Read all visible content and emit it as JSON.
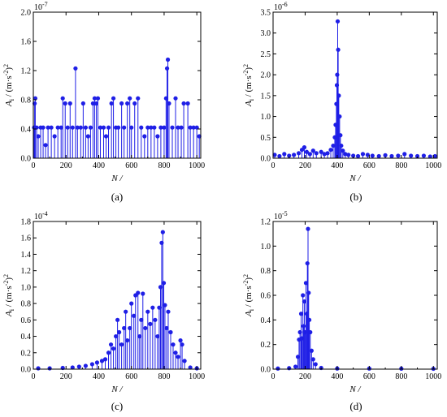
{
  "figure": {
    "panel_labels": [
      "(a)",
      "(b)",
      "(c)",
      "(d)"
    ]
  },
  "chart_data": [
    {
      "type": "scatter",
      "style": "stem",
      "color": "#1f1fe6",
      "panel": "(a)",
      "xlabel": "N /",
      "ylabel": "A_i / (m·s^-2)^2",
      "scale_label": "10^-7",
      "xlim": [
        0,
        1024
      ],
      "ylim": [
        0,
        2.0
      ],
      "x_ticks": [
        0,
        200,
        400,
        600,
        800,
        1000
      ],
      "x_tick_labels": [
        "0",
        "200",
        "400",
        "600",
        "800",
        "1000"
      ],
      "y_ticks": [
        0,
        0.4,
        0.8,
        1.2,
        1.6,
        2.0
      ],
      "y_tick_labels": [
        "0.0",
        "0.4",
        "0.8",
        "1.2",
        "1.6",
        "2.0"
      ],
      "points": [
        [
          5,
          0.42
        ],
        [
          8,
          0.75
        ],
        [
          12,
          0.82
        ],
        [
          20,
          0.42
        ],
        [
          30,
          0.3
        ],
        [
          45,
          0.42
        ],
        [
          60,
          0.42
        ],
        [
          75,
          0.18
        ],
        [
          90,
          0.42
        ],
        [
          110,
          0.42
        ],
        [
          130,
          0.3
        ],
        [
          150,
          0.42
        ],
        [
          170,
          0.42
        ],
        [
          180,
          0.82
        ],
        [
          195,
          0.75
        ],
        [
          210,
          0.42
        ],
        [
          225,
          0.75
        ],
        [
          240,
          0.42
        ],
        [
          258,
          1.23
        ],
        [
          270,
          0.42
        ],
        [
          290,
          0.42
        ],
        [
          305,
          0.75
        ],
        [
          320,
          0.42
        ],
        [
          335,
          0.3
        ],
        [
          350,
          0.42
        ],
        [
          365,
          0.75
        ],
        [
          375,
          0.82
        ],
        [
          385,
          0.75
        ],
        [
          395,
          0.82
        ],
        [
          410,
          0.42
        ],
        [
          430,
          0.42
        ],
        [
          445,
          0.3
        ],
        [
          460,
          0.42
        ],
        [
          478,
          0.75
        ],
        [
          490,
          0.82
        ],
        [
          505,
          0.42
        ],
        [
          520,
          0.42
        ],
        [
          540,
          0.75
        ],
        [
          555,
          0.42
        ],
        [
          575,
          0.75
        ],
        [
          590,
          0.82
        ],
        [
          600,
          0.42
        ],
        [
          620,
          0.75
        ],
        [
          640,
          0.82
        ],
        [
          660,
          0.42
        ],
        [
          680,
          0.3
        ],
        [
          700,
          0.42
        ],
        [
          720,
          0.42
        ],
        [
          740,
          0.42
        ],
        [
          760,
          0.3
        ],
        [
          780,
          0.42
        ],
        [
          800,
          0.42
        ],
        [
          812,
          0.82
        ],
        [
          818,
          1.23
        ],
        [
          823,
          1.35
        ],
        [
          830,
          0.75
        ],
        [
          850,
          0.42
        ],
        [
          870,
          0.82
        ],
        [
          885,
          0.42
        ],
        [
          905,
          0.42
        ],
        [
          920,
          0.75
        ],
        [
          945,
          0.75
        ],
        [
          960,
          0.42
        ],
        [
          980,
          0.42
        ],
        [
          1000,
          0.42
        ],
        [
          1015,
          0.3
        ]
      ]
    },
    {
      "type": "scatter",
      "style": "stem",
      "color": "#1f1fe6",
      "panel": "(b)",
      "xlabel": "N /",
      "ylabel": "A_i / (m·s^-2)^2",
      "scale_label": "10^-6",
      "xlim": [
        0,
        1024
      ],
      "ylim": [
        0,
        3.5
      ],
      "x_ticks": [
        0,
        200,
        400,
        600,
        800,
        1000
      ],
      "x_tick_labels": [
        "0",
        "200",
        "400",
        "600",
        "800",
        "1000"
      ],
      "y_ticks": [
        0,
        0.5,
        1.0,
        1.5,
        2.0,
        2.5,
        3.0,
        3.5
      ],
      "y_tick_labels": [
        "0.0",
        "0.5",
        "1.0",
        "1.5",
        "2.0",
        "2.5",
        "3.0",
        "3.5"
      ],
      "points": [
        [
          10,
          0.08
        ],
        [
          40,
          0.05
        ],
        [
          70,
          0.1
        ],
        [
          100,
          0.06
        ],
        [
          130,
          0.08
        ],
        [
          160,
          0.12
        ],
        [
          180,
          0.2
        ],
        [
          195,
          0.26
        ],
        [
          210,
          0.15
        ],
        [
          230,
          0.1
        ],
        [
          250,
          0.18
        ],
        [
          270,
          0.12
        ],
        [
          300,
          0.15
        ],
        [
          320,
          0.1
        ],
        [
          340,
          0.12
        ],
        [
          360,
          0.2
        ],
        [
          375,
          0.3
        ],
        [
          385,
          0.5
        ],
        [
          390,
          0.8
        ],
        [
          395,
          1.3
        ],
        [
          398,
          1.75
        ],
        [
          400,
          2.0
        ],
        [
          403,
          3.28
        ],
        [
          406,
          2.6
        ],
        [
          410,
          1.5
        ],
        [
          415,
          1.0
        ],
        [
          420,
          0.55
        ],
        [
          425,
          0.3
        ],
        [
          435,
          0.18
        ],
        [
          450,
          0.1
        ],
        [
          470,
          0.08
        ],
        [
          500,
          0.06
        ],
        [
          530,
          0.05
        ],
        [
          560,
          0.1
        ],
        [
          590,
          0.08
        ],
        [
          620,
          0.06
        ],
        [
          660,
          0.05
        ],
        [
          700,
          0.07
        ],
        [
          740,
          0.05
        ],
        [
          780,
          0.06
        ],
        [
          820,
          0.1
        ],
        [
          860,
          0.06
        ],
        [
          900,
          0.05
        ],
        [
          940,
          0.06
        ],
        [
          980,
          0.04
        ],
        [
          1010,
          0.05
        ]
      ]
    },
    {
      "type": "scatter",
      "style": "stem",
      "color": "#1f1fe6",
      "panel": "(c)",
      "xlabel": "N /",
      "ylabel": "A_i / (m·s^-2)^2",
      "scale_label": "10^-4",
      "xlim": [
        0,
        1024
      ],
      "ylim": [
        0,
        1.8
      ],
      "x_ticks": [
        0,
        200,
        400,
        600,
        800,
        1000
      ],
      "x_tick_labels": [
        "0",
        "200",
        "400",
        "600",
        "800",
        "1000"
      ],
      "y_ticks": [
        0,
        0.2,
        0.4,
        0.6,
        0.8,
        1.0,
        1.2,
        1.4,
        1.6,
        1.8
      ],
      "y_tick_labels": [
        "0.0",
        "0.2",
        "0.4",
        "0.6",
        "0.8",
        "1.0",
        "1.2",
        "1.4",
        "1.6",
        "1.8"
      ],
      "points": [
        [
          30,
          0.01
        ],
        [
          100,
          0.01
        ],
        [
          180,
          0.015
        ],
        [
          240,
          0.02
        ],
        [
          280,
          0.03
        ],
        [
          320,
          0.04
        ],
        [
          360,
          0.06
        ],
        [
          390,
          0.08
        ],
        [
          420,
          0.1
        ],
        [
          440,
          0.12
        ],
        [
          460,
          0.2
        ],
        [
          475,
          0.3
        ],
        [
          490,
          0.25
        ],
        [
          505,
          0.4
        ],
        [
          515,
          0.6
        ],
        [
          525,
          0.45
        ],
        [
          540,
          0.3
        ],
        [
          555,
          0.5
        ],
        [
          565,
          0.7
        ],
        [
          575,
          0.35
        ],
        [
          590,
          0.5
        ],
        [
          600,
          0.8
        ],
        [
          615,
          0.65
        ],
        [
          625,
          0.9
        ],
        [
          640,
          0.93
        ],
        [
          650,
          0.4
        ],
        [
          660,
          0.6
        ],
        [
          670,
          0.92
        ],
        [
          685,
          0.5
        ],
        [
          700,
          0.7
        ],
        [
          715,
          0.55
        ],
        [
          730,
          0.75
        ],
        [
          745,
          0.6
        ],
        [
          760,
          0.4
        ],
        [
          770,
          0.75
        ],
        [
          778,
          1.0
        ],
        [
          785,
          1.54
        ],
        [
          792,
          1.67
        ],
        [
          798,
          1.05
        ],
        [
          805,
          0.78
        ],
        [
          815,
          0.5
        ],
        [
          825,
          0.7
        ],
        [
          840,
          0.45
        ],
        [
          855,
          0.3
        ],
        [
          870,
          0.2
        ],
        [
          885,
          0.15
        ],
        [
          900,
          0.35
        ],
        [
          910,
          0.3
        ],
        [
          925,
          0.1
        ],
        [
          960,
          0.02
        ],
        [
          1000,
          0.01
        ]
      ]
    },
    {
      "type": "scatter",
      "style": "stem",
      "color": "#1f1fe6",
      "panel": "(d)",
      "xlabel": "N /",
      "ylabel": "A_i / (m·s^-2)^2",
      "scale_label": "10^-5",
      "xlim": [
        0,
        1024
      ],
      "ylim": [
        0,
        1.2
      ],
      "x_ticks": [
        0,
        200,
        400,
        600,
        800,
        1000
      ],
      "x_tick_labels": [
        "0",
        "200",
        "400",
        "600",
        "800",
        "1000"
      ],
      "y_ticks": [
        0,
        0.2,
        0.4,
        0.6,
        0.8,
        1.0,
        1.2
      ],
      "y_tick_labels": [
        "0.0",
        "0.2",
        "0.4",
        "0.6",
        "0.8",
        "1.0",
        "1.2"
      ],
      "points": [
        [
          30,
          0.005
        ],
        [
          100,
          0.008
        ],
        [
          140,
          0.02
        ],
        [
          155,
          0.1
        ],
        [
          162,
          0.24
        ],
        [
          168,
          0.3
        ],
        [
          175,
          0.45
        ],
        [
          180,
          0.25
        ],
        [
          186,
          0.6
        ],
        [
          190,
          0.35
        ],
        [
          195,
          0.55
        ],
        [
          200,
          0.3
        ],
        [
          205,
          0.7
        ],
        [
          210,
          0.45
        ],
        [
          214,
          0.86
        ],
        [
          218,
          1.14
        ],
        [
          222,
          0.62
        ],
        [
          226,
          0.4
        ],
        [
          232,
          0.3
        ],
        [
          240,
          0.15
        ],
        [
          250,
          0.08
        ],
        [
          265,
          0.04
        ],
        [
          300,
          0.01
        ],
        [
          400,
          0.005
        ],
        [
          600,
          0.005
        ],
        [
          800,
          0.004
        ],
        [
          1000,
          0.003
        ]
      ]
    }
  ]
}
